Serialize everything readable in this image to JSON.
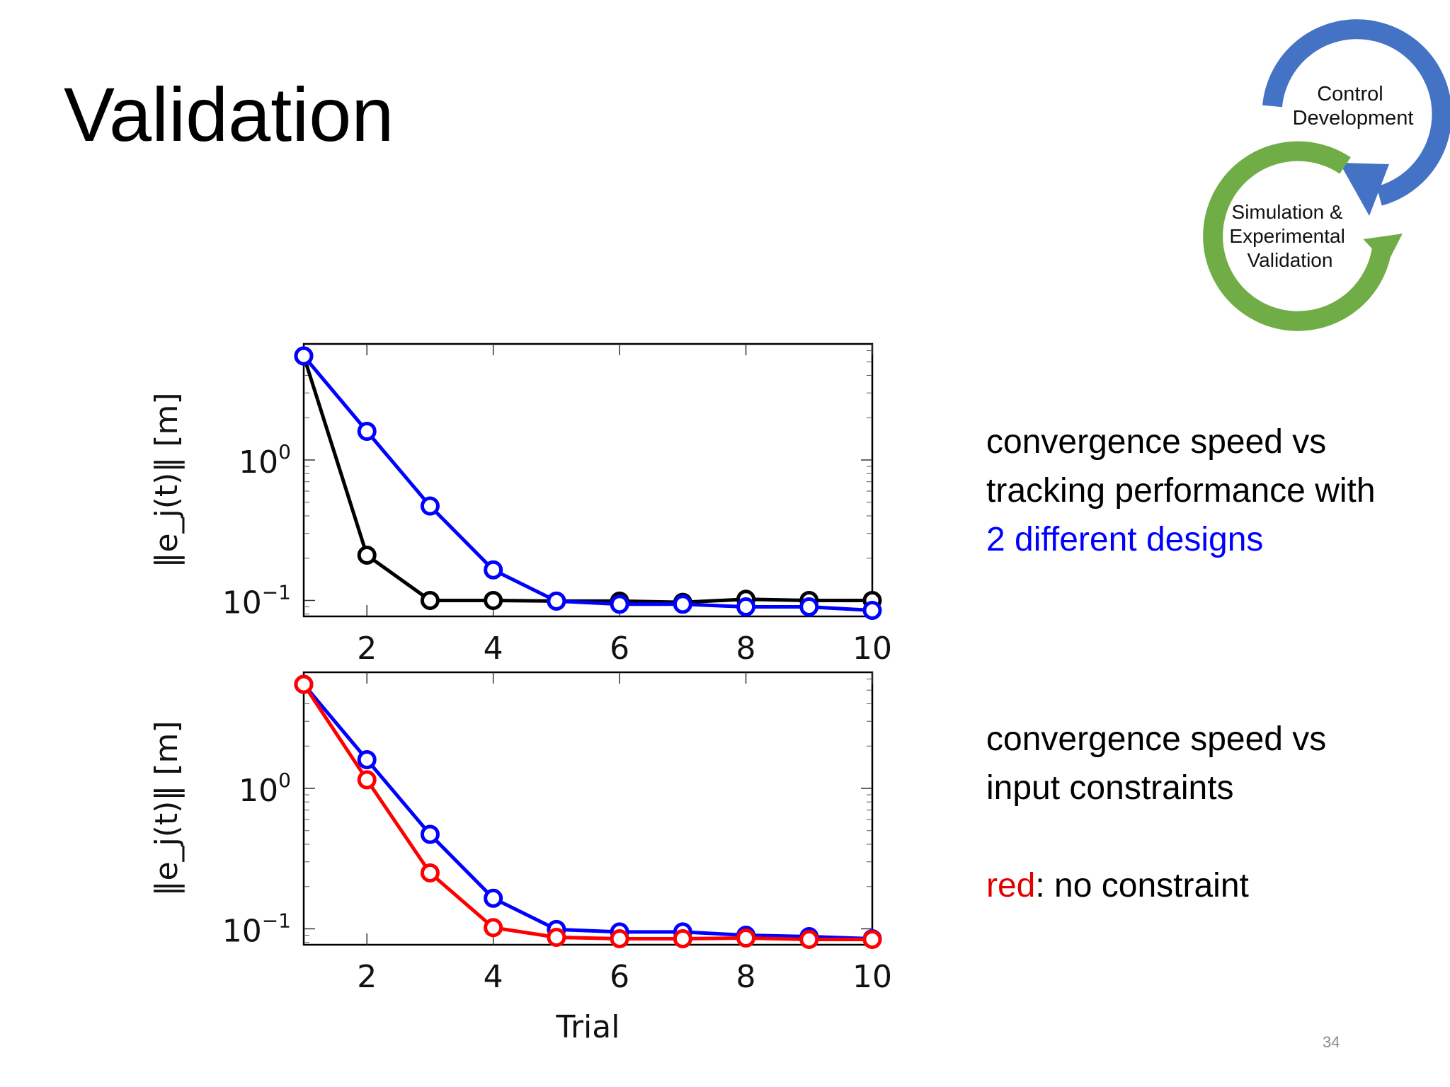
{
  "slide": {
    "title": "Validation",
    "page_number": "34"
  },
  "cycle_diagram": {
    "top_label_lines": [
      "Control",
      "Development"
    ],
    "bottom_label_lines": [
      "Simulation &",
      "Experimental",
      "Validation"
    ],
    "colors": {
      "top_ring": "#4472c4",
      "bottom_ring": "#70ad47"
    }
  },
  "notes": {
    "top": {
      "line1": "convergence speed vs",
      "line2": "tracking performance with",
      "line3": "2 different designs",
      "line3_color": "#0000ff"
    },
    "bottom": {
      "line1": "convergence speed vs",
      "line2": "input constraints",
      "line3_keyword": "red",
      "line3_keyword_color": "#e00000",
      "line3_rest": ": no constraint"
    }
  },
  "chart_data": [
    {
      "type": "line",
      "xlabel": "",
      "ylabel": "‖e_j(t)‖ [m]",
      "yscale": "log",
      "xlim": [
        1,
        10
      ],
      "ylim": [
        0.077,
        6.7
      ],
      "x_ticks": [
        2,
        4,
        6,
        8,
        10
      ],
      "y_ticks": [
        {
          "value": 1,
          "label_base": "10",
          "label_exp": "0"
        },
        {
          "value": 0.1,
          "label_base": "10",
          "label_exp": "−1"
        }
      ],
      "x": [
        1,
        2,
        3,
        4,
        5,
        6,
        7,
        8,
        9,
        10
      ],
      "series": [
        {
          "color": "#000000",
          "values": [
            5.5,
            0.21,
            0.1,
            0.1,
            0.099,
            0.099,
            0.097,
            0.102,
            0.1,
            0.1
          ]
        },
        {
          "color": "#0000ff",
          "values": [
            5.5,
            1.6,
            0.47,
            0.165,
            0.099,
            0.094,
            0.094,
            0.09,
            0.09,
            0.085
          ]
        }
      ]
    },
    {
      "type": "line",
      "xlabel": "Trial",
      "ylabel": "‖e_j(t)‖ [m]",
      "yscale": "log",
      "xlim": [
        1,
        10
      ],
      "ylim": [
        0.077,
        6.7
      ],
      "x_ticks": [
        2,
        4,
        6,
        8,
        10
      ],
      "y_ticks": [
        {
          "value": 1,
          "label_base": "10",
          "label_exp": "0"
        },
        {
          "value": 0.1,
          "label_base": "10",
          "label_exp": "−1"
        }
      ],
      "x": [
        1,
        2,
        3,
        4,
        5,
        6,
        7,
        8,
        9,
        10
      ],
      "series": [
        {
          "color": "#0000ff",
          "values": [
            5.5,
            1.6,
            0.47,
            0.165,
            0.099,
            0.095,
            0.095,
            0.09,
            0.088,
            0.085
          ]
        },
        {
          "color": "#ff0000",
          "values": [
            5.5,
            1.15,
            0.25,
            0.102,
            0.087,
            0.085,
            0.085,
            0.086,
            0.084,
            0.084
          ]
        }
      ]
    }
  ]
}
